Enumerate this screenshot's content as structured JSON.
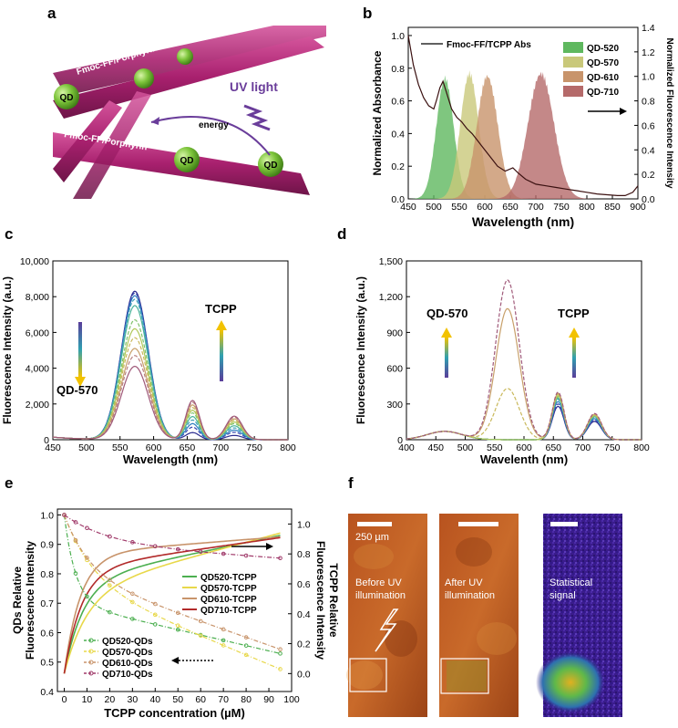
{
  "panels": {
    "a": {
      "label": "a",
      "fiber_label_1": "Fmoc-FF/Porphyrin",
      "fiber_label_2": "Fmoc-FF/Porphyrin",
      "qd_label": "QD",
      "uv_label": "UV light",
      "energy_label": "energy"
    },
    "b": {
      "label": "b"
    },
    "c": {
      "label": "c",
      "annot_qd": "QD-570",
      "annot_tcpp": "TCPP"
    },
    "d": {
      "label": "d",
      "annot_qd": "QD-570",
      "annot_tcpp": "TCPP"
    },
    "e": {
      "label": "e"
    },
    "f": {
      "label": "f",
      "scale_bar": "250 µm",
      "caption_1": "Before UV\nillumination",
      "caption_2": "After UV\nillumination",
      "caption_3": "Statistical\nsignal"
    }
  },
  "colors": {
    "fiber": "#b02b78",
    "qd_green": "#7cc43a",
    "uv_purple": "#6a3d9a",
    "tcpp_pink": "#d862a8",
    "qd570_olive": "#5a5a3a",
    "qd520": "#5fb85f",
    "qd570": "#c9c87a",
    "qd610": "#c8946b",
    "qd710": "#b56a6a"
  },
  "chart_data": [
    {
      "panel": "b",
      "type": "area",
      "xlabel": "Wavelength (nm)",
      "ylabel": "Normalized Absorbance",
      "y2label": "Normalized Fluorescence Intensity",
      "xlim": [
        450,
        900
      ],
      "ylim": [
        0,
        1.05
      ],
      "y2lim": [
        0,
        1.4
      ],
      "xticks": [
        "450",
        "500",
        "550",
        "600",
        "650",
        "700",
        "750",
        "800",
        "850",
        "900"
      ],
      "yticks": [
        "0.0",
        "0.2",
        "0.4",
        "0.6",
        "0.8",
        "1.0"
      ],
      "y2ticks": [
        "0.0",
        "0.2",
        "0.4",
        "0.6",
        "0.8",
        "1.0",
        "1.2",
        "1.4"
      ],
      "line_legend": "Fmoc-FF/TCPP Abs",
      "series": [
        {
          "name": "QD-520",
          "center": 522,
          "fwhm": 40,
          "peak": 0.98,
          "color": "#5fb85f"
        },
        {
          "name": "QD-570",
          "center": 570,
          "fwhm": 42,
          "peak": 1.02,
          "color": "#c9c87a"
        },
        {
          "name": "QD-610",
          "center": 605,
          "fwhm": 48,
          "peak": 1.0,
          "color": "#c8946b"
        },
        {
          "name": "QD-710",
          "center": 710,
          "fwhm": 60,
          "peak": 1.02,
          "color": "#b56a6a"
        }
      ],
      "abs_curve": [
        [
          450,
          1.0
        ],
        [
          460,
          0.82
        ],
        [
          470,
          0.7
        ],
        [
          480,
          0.62
        ],
        [
          490,
          0.57
        ],
        [
          500,
          0.55
        ],
        [
          505,
          0.6
        ],
        [
          512,
          0.68
        ],
        [
          518,
          0.72
        ],
        [
          525,
          0.65
        ],
        [
          535,
          0.55
        ],
        [
          545,
          0.5
        ],
        [
          555,
          0.47
        ],
        [
          565,
          0.43
        ],
        [
          575,
          0.4
        ],
        [
          585,
          0.36
        ],
        [
          595,
          0.32
        ],
        [
          605,
          0.28
        ],
        [
          615,
          0.24
        ],
        [
          625,
          0.2
        ],
        [
          640,
          0.17
        ],
        [
          655,
          0.19
        ],
        [
          665,
          0.16
        ],
        [
          680,
          0.12
        ],
        [
          700,
          0.09
        ],
        [
          720,
          0.08
        ],
        [
          740,
          0.07
        ],
        [
          760,
          0.06
        ],
        [
          780,
          0.05
        ],
        [
          800,
          0.04
        ],
        [
          820,
          0.03
        ],
        [
          840,
          0.025
        ],
        [
          860,
          0.02
        ],
        [
          875,
          0.02
        ],
        [
          890,
          0.04
        ],
        [
          900,
          0.08
        ]
      ]
    },
    {
      "panel": "c",
      "type": "line",
      "xlabel": "Wavelength (nm)",
      "ylabel": "Fluorescence Intensity (a.u.)",
      "xlim": [
        450,
        800
      ],
      "ylim": [
        0,
        10000
      ],
      "xticks": [
        "450",
        "500",
        "550",
        "600",
        "650",
        "700",
        "750",
        "800"
      ],
      "yticks": [
        "0",
        "2,000",
        "4,000",
        "6,000",
        "8,000",
        "10,000"
      ],
      "qd_peaks": [
        8300,
        8200,
        8050,
        7850,
        7500,
        6700,
        6200,
        5700,
        5100,
        4700,
        4100
      ],
      "tcpp_peaks": [
        400,
        700,
        900,
        1100,
        1300,
        1500,
        1650,
        1800,
        1950,
        2100,
        2200
      ],
      "colors": [
        "#2b2b8f",
        "#3a4ab0",
        "#2f7fc0",
        "#3aa0b8",
        "#4bb39a",
        "#7ec26a",
        "#b0c85a",
        "#c9b85a",
        "#c8a06a",
        "#b88080",
        "#a05a7a"
      ]
    },
    {
      "panel": "d",
      "type": "line",
      "xlabel": "Wavelenth (nm)",
      "ylabel": "Fluorescence Intensity (a.u.)",
      "xlim": [
        400,
        800
      ],
      "ylim": [
        0,
        1500
      ],
      "xticks": [
        "400",
        "450",
        "500",
        "550",
        "600",
        "650",
        "700",
        "750",
        "800"
      ],
      "yticks": [
        "0",
        "300",
        "600",
        "900",
        "1,200",
        "1,500"
      ],
      "qd_peaks": [
        0,
        0,
        0,
        0,
        0,
        0,
        0,
        430,
        1100,
        1340
      ],
      "tcpp_peaks": [
        280,
        300,
        320,
        340,
        350,
        360,
        370,
        380,
        390,
        400
      ],
      "colors": [
        "#2b2b8f",
        "#3a4ab0",
        "#2f7fc0",
        "#3aa0b8",
        "#4bb39a",
        "#7ec26a",
        "#b0c85a",
        "#c9b85a",
        "#c8a06a",
        "#a05a7a"
      ]
    },
    {
      "panel": "e",
      "type": "line",
      "xlabel": "TCPP concentration (µM)",
      "ylabel": "QDs Relative\nFluorescence Intensity",
      "y2label": "TCPP Relative\nFluorescence Intensity",
      "xlim": [
        -3,
        100
      ],
      "ylim": [
        0.4,
        1.02
      ],
      "y2lim": [
        -0.12,
        1.1
      ],
      "xticks": [
        "0",
        "10",
        "20",
        "30",
        "40",
        "50",
        "60",
        "70",
        "80",
        "90",
        "100"
      ],
      "yticks": [
        "0.4",
        "0.5",
        "0.6",
        "0.7",
        "0.8",
        "0.9",
        "1.0"
      ],
      "y2ticks": [
        "0.0",
        "0.2",
        "0.4",
        "0.6",
        "0.8",
        "1.0"
      ],
      "tcpp_series": [
        {
          "name": "QD520-TCPP",
          "color": "#4caf50",
          "a": 0.62,
          "k": 0.12,
          "lin": 0.0032
        },
        {
          "name": "QD570-TCPP",
          "color": "#e8d84a",
          "a": 0.55,
          "k": 0.1,
          "lin": 0.0041
        },
        {
          "name": "QD610-TCPP",
          "color": "#c8946b",
          "a": 0.8,
          "k": 0.14,
          "lin": 0.0012
        },
        {
          "name": "QD710-TCPP",
          "color": "#b22a2a",
          "a": 0.7,
          "k": 0.13,
          "lin": 0.0022
        }
      ],
      "qd_series": [
        {
          "name": "QD520-QDs",
          "color": "#4caf50",
          "a": 0.3,
          "k": 0.2,
          "lin": 0.0018
        },
        {
          "name": "QD570-QDs",
          "color": "#e8d84a",
          "a": 0.22,
          "k": 0.08,
          "lin": 0.0032
        },
        {
          "name": "QD610-QDs",
          "color": "#c8946b",
          "a": 0.2,
          "k": 0.09,
          "lin": 0.0027
        },
        {
          "name": "QD710-QDs",
          "color": "#a03a6a",
          "a": 0.1,
          "k": 0.05,
          "lin": 0.0005
        }
      ]
    }
  ]
}
